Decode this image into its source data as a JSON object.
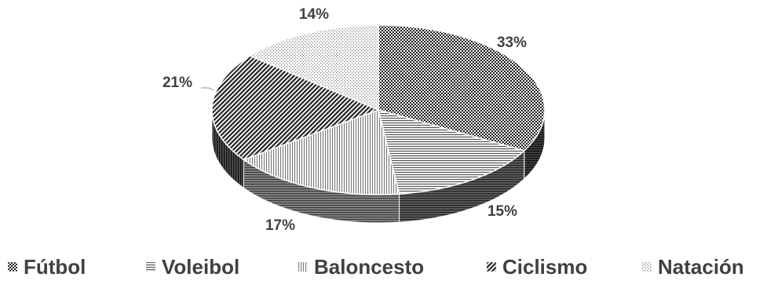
{
  "chart_data": {
    "type": "pie",
    "title": "",
    "categories": [
      "Fútbol",
      "Voleibol",
      "Baloncesto",
      "Ciclismo",
      "Natación"
    ],
    "values": [
      33,
      15,
      17,
      21,
      14
    ],
    "labels": [
      "33%",
      "15%",
      "17%",
      "21%",
      "14%"
    ],
    "legend_position": "bottom",
    "style": "3d",
    "colors": [
      "#222222",
      "#777777",
      "#aaaaaa",
      "#333333",
      "#cfcfcf"
    ]
  }
}
